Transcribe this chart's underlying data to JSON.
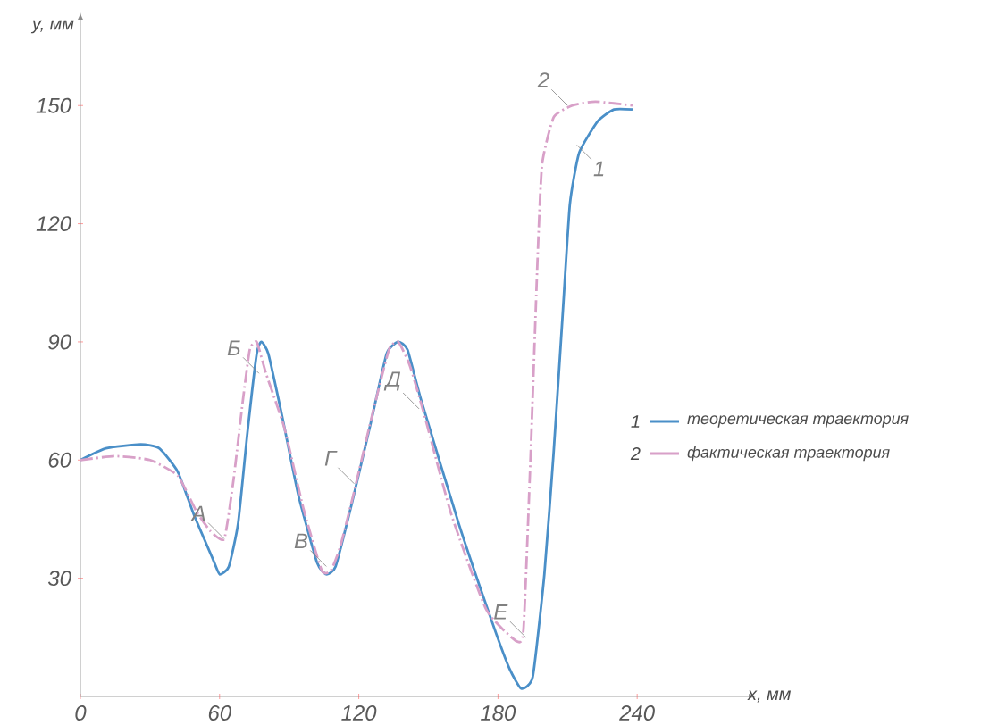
{
  "chart_data": {
    "type": "line",
    "xlabel": "x, мм",
    "ylabel": "у, мм",
    "xlim": [
      0,
      285
    ],
    "ylim": [
      0,
      170
    ],
    "xticks": [
      0,
      60,
      120,
      180,
      240
    ],
    "yticks": [
      30,
      60,
      90,
      120,
      150
    ],
    "grid": false,
    "legend": "right",
    "series": [
      {
        "name": "теоретическая траектория",
        "color": "#4a8fc8",
        "line_style": "solid",
        "x": [
          0,
          11,
          26,
          34,
          42,
          49,
          57,
          60,
          64,
          68,
          72,
          76,
          78,
          81,
          87,
          94,
          102,
          106,
          110,
          117,
          125,
          132,
          137,
          141,
          147,
          163,
          178,
          185,
          190,
          195,
          200,
          204,
          208,
          211,
          215,
          223,
          230,
          238
        ],
        "values": [
          60,
          63,
          64,
          63,
          57,
          46,
          35,
          31,
          33,
          44,
          67,
          87,
          90,
          87,
          71,
          51,
          34,
          31,
          33,
          49,
          69,
          87,
          90,
          88,
          75,
          44,
          18,
          7,
          2,
          5,
          31,
          62,
          98,
          125,
          138,
          146,
          149,
          149
        ]
      },
      {
        "name": "фактическая траектория",
        "color": "#d8a0c8",
        "line_style": "dashed",
        "x": [
          0,
          15,
          30,
          42,
          50,
          56,
          62,
          66,
          70,
          73,
          76,
          80,
          88,
          96,
          104,
          108,
          112,
          118,
          126,
          133,
          137,
          142,
          148,
          160,
          175,
          188,
          191,
          194,
          197,
          199,
          204,
          212,
          222,
          238
        ],
        "values": [
          60,
          61,
          60,
          56,
          47,
          42,
          40,
          55,
          75,
          88,
          90,
          82,
          68,
          48,
          32,
          32,
          38,
          52,
          72,
          88,
          90,
          84,
          72,
          46,
          22,
          14,
          17,
          60,
          110,
          135,
          147,
          150,
          151,
          150
        ]
      }
    ],
    "annotations": [
      {
        "text": "А",
        "x": 62,
        "y": 40
      },
      {
        "text": "Б",
        "x": 77,
        "y": 82
      },
      {
        "text": "В",
        "x": 106,
        "y": 33
      },
      {
        "text": "Г",
        "x": 118,
        "y": 54
      },
      {
        "text": "Д",
        "x": 146,
        "y": 73
      },
      {
        "text": "Е",
        "x": 192,
        "y": 15
      },
      {
        "text": "2",
        "x": 210,
        "y": 150
      },
      {
        "text": "1",
        "x": 214,
        "y": 140
      },
      "1",
      "2"
    ]
  }
}
